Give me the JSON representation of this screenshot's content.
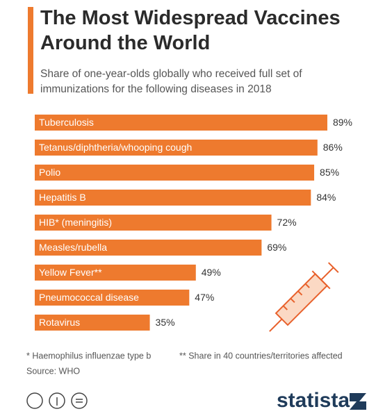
{
  "chart_data": {
    "type": "hbar",
    "title": "The Most Widespread Vaccines Around the World",
    "subtitle": "Share of one-year-olds globally who received full set of immunizations for the following diseases in 2018",
    "categories": [
      "Tuberculosis",
      "Tetanus/diphtheria/whooping cough",
      "Polio",
      "Hepatitis B",
      "HIB* (meningitis)",
      "Measles/rubella",
      "Yellow Fever**",
      "Pneumococcal disease",
      "Rotavirus"
    ],
    "values": [
      89,
      86,
      85,
      84,
      72,
      69,
      49,
      47,
      35
    ],
    "value_labels": [
      "89%",
      "86%",
      "85%",
      "84%",
      "72%",
      "69%",
      "49%",
      "47%",
      "35%"
    ],
    "color": "#ee7a2e",
    "xlim": [
      0,
      100
    ],
    "notes": [
      "* Haemophilus influenzae type b",
      "** Share in 40 countries/territories affected"
    ],
    "source": "Source: WHO",
    "brand": "statista"
  }
}
